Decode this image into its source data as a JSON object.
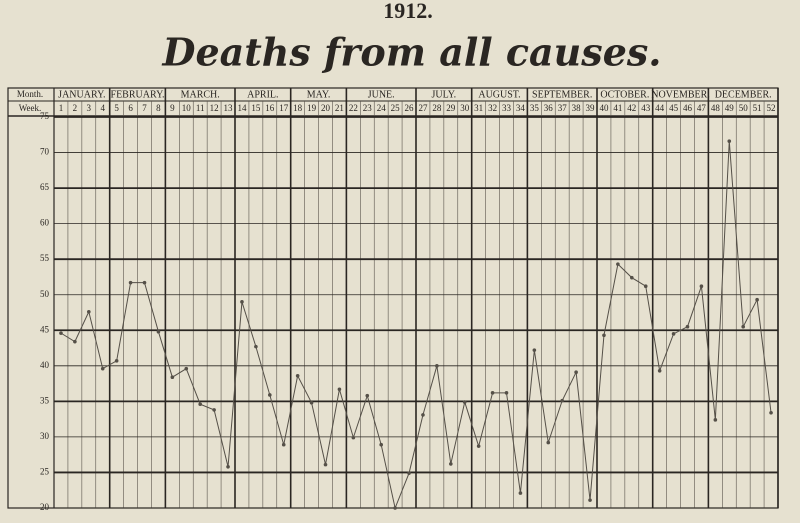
{
  "chart_data": {
    "type": "line",
    "title": "1912.",
    "subtitle": "Deaths from all causes.",
    "month_header": "Month.",
    "week_header": "Week.",
    "months": [
      "JANUARY.",
      "FEBRUARY.",
      "MARCH.",
      "APRIL.",
      "MAY.",
      "JUNE.",
      "JULY.",
      "AUGUST.",
      "SEPTEMBER.",
      "OCTOBER.",
      "NOVEMBER.",
      "DECEMBER."
    ],
    "categories": [
      "1",
      "2",
      "3",
      "4",
      "5",
      "6",
      "7",
      "8",
      "9",
      "10",
      "11",
      "12",
      "13",
      "14",
      "15",
      "16",
      "17",
      "18",
      "19",
      "20",
      "21",
      "22",
      "23",
      "24",
      "25",
      "26",
      "27",
      "28",
      "29",
      "30",
      "31",
      "32",
      "33",
      "34",
      "35",
      "36",
      "37",
      "38",
      "39",
      "40",
      "41",
      "42",
      "43",
      "44",
      "45",
      "46",
      "47",
      "48",
      "49",
      "50",
      "51",
      "52"
    ],
    "values": [
      44.6,
      43.4,
      47.6,
      39.6,
      40.7,
      51.7,
      51.7,
      44.8,
      38.4,
      39.6,
      34.6,
      33.8,
      25.8,
      49.0,
      42.7,
      35.9,
      28.9,
      38.6,
      34.8,
      26.1,
      36.7,
      29.9,
      35.8,
      28.9,
      20.0,
      24.9,
      33.1,
      40.0,
      26.2,
      34.9,
      28.7,
      36.2,
      36.2,
      22.1,
      42.2,
      29.2,
      35.1,
      39.1,
      21.1,
      44.3,
      54.3,
      52.4,
      51.2,
      39.3,
      44.5,
      45.5,
      51.2,
      32.4,
      71.6,
      45.5,
      49.3,
      33.4
    ],
    "color": "#555048",
    "ylim": [
      20,
      75
    ],
    "yticks": [
      20,
      25,
      30,
      35,
      40,
      45,
      50,
      55,
      60,
      65,
      70,
      75
    ],
    "grid": true
  }
}
